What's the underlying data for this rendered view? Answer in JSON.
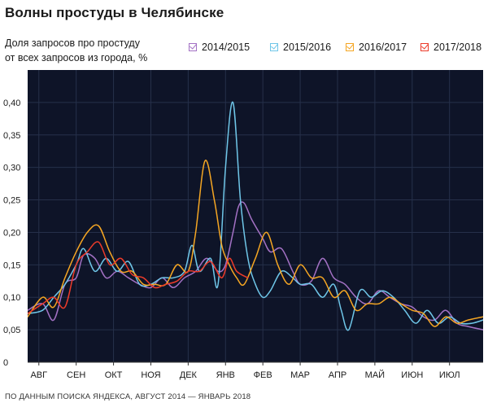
{
  "chart_data": {
    "type": "line",
    "title": "Волны простуды в Челябинске",
    "ylabel_lines": [
      "Доля запросов про простуду",
      "от всех запросов из города, %"
    ],
    "xlabel": "",
    "ylim": [
      0,
      0.45
    ],
    "yticks": [
      0,
      0.05,
      0.1,
      0.15,
      0.2,
      0.25,
      0.3,
      0.35,
      0.4
    ],
    "ytick_labels": [
      "0",
      "0,05",
      "0,10",
      "0,15",
      "0,20",
      "0,25",
      "0,30",
      "0,35",
      "0,40"
    ],
    "months": [
      "АВГ",
      "СЕН",
      "ОКТ",
      "НОЯ",
      "ДЕК",
      "ЯНВ",
      "ФЕВ",
      "МАР",
      "АПР",
      "МАЙ",
      "ИЮН",
      "ИЮЛ"
    ],
    "x_unit": "months since Aug 1",
    "xlim": [
      -0.3,
      11.9
    ],
    "source": "ПО ДАННЫМ ПОИСКА ЯНДЕКСА, АВГУСТ 2014 — ЯНВАРЬ 2018",
    "background": "#0e1428",
    "series": [
      {
        "name": "2014/2015",
        "color": "#a371c4",
        "x": [
          -0.3,
          0.1,
          0.4,
          0.7,
          1.0,
          1.2,
          1.5,
          1.8,
          2.1,
          2.4,
          2.7,
          3.0,
          3.3,
          3.6,
          3.9,
          4.2,
          4.5,
          4.8,
          5.0,
          5.2,
          5.35,
          5.5,
          5.7,
          6.0,
          6.2,
          6.5,
          6.8,
          7.0,
          7.3,
          7.6,
          7.9,
          8.2,
          8.5,
          8.8,
          9.1,
          9.4,
          9.7,
          10.0,
          10.3,
          10.6,
          10.9,
          11.2,
          11.5,
          11.9
        ],
        "values": [
          0.08,
          0.09,
          0.065,
          0.12,
          0.13,
          0.165,
          0.16,
          0.13,
          0.14,
          0.13,
          0.12,
          0.115,
          0.13,
          0.115,
          0.13,
          0.14,
          0.16,
          0.14,
          0.15,
          0.2,
          0.24,
          0.245,
          0.22,
          0.19,
          0.17,
          0.175,
          0.14,
          0.12,
          0.125,
          0.16,
          0.13,
          0.12,
          0.1,
          0.09,
          0.11,
          0.1,
          0.09,
          0.085,
          0.07,
          0.065,
          0.08,
          0.06,
          0.055,
          0.05
        ]
      },
      {
        "name": "2015/2016",
        "color": "#6fc6e8",
        "x": [
          -0.3,
          0.1,
          0.4,
          0.7,
          1.0,
          1.2,
          1.5,
          1.8,
          2.1,
          2.4,
          2.7,
          3.0,
          3.3,
          3.6,
          3.9,
          4.1,
          4.3,
          4.6,
          4.8,
          5.0,
          5.2,
          5.4,
          5.6,
          5.8,
          6.0,
          6.2,
          6.5,
          6.8,
          7.0,
          7.3,
          7.6,
          7.9,
          8.1,
          8.3,
          8.6,
          8.9,
          9.2,
          9.5,
          9.8,
          10.1,
          10.4,
          10.7,
          11.0,
          11.3,
          11.6,
          11.9
        ],
        "values": [
          0.075,
          0.08,
          0.1,
          0.12,
          0.15,
          0.175,
          0.14,
          0.16,
          0.14,
          0.155,
          0.12,
          0.12,
          0.13,
          0.13,
          0.14,
          0.18,
          0.14,
          0.16,
          0.12,
          0.3,
          0.4,
          0.25,
          0.16,
          0.12,
          0.1,
          0.11,
          0.14,
          0.13,
          0.12,
          0.12,
          0.1,
          0.12,
          0.08,
          0.05,
          0.11,
          0.1,
          0.11,
          0.1,
          0.08,
          0.06,
          0.08,
          0.06,
          0.07,
          0.06,
          0.06,
          0.065
        ]
      },
      {
        "name": "2016/2017",
        "color": "#f5a623",
        "x": [
          -0.3,
          0.1,
          0.4,
          0.7,
          1.0,
          1.3,
          1.6,
          1.9,
          2.2,
          2.5,
          2.8,
          3.1,
          3.4,
          3.7,
          4.0,
          4.2,
          4.45,
          4.7,
          4.9,
          5.1,
          5.3,
          5.5,
          5.8,
          6.1,
          6.4,
          6.7,
          7.0,
          7.3,
          7.6,
          7.9,
          8.2,
          8.5,
          8.8,
          9.1,
          9.4,
          9.7,
          10.0,
          10.3,
          10.6,
          10.9,
          11.2,
          11.5,
          11.9
        ],
        "values": [
          0.07,
          0.1,
          0.085,
          0.13,
          0.17,
          0.2,
          0.21,
          0.17,
          0.14,
          0.14,
          0.12,
          0.12,
          0.12,
          0.15,
          0.14,
          0.2,
          0.31,
          0.25,
          0.18,
          0.15,
          0.13,
          0.12,
          0.16,
          0.2,
          0.15,
          0.12,
          0.15,
          0.13,
          0.13,
          0.1,
          0.11,
          0.08,
          0.09,
          0.09,
          0.1,
          0.09,
          0.08,
          0.075,
          0.055,
          0.07,
          0.06,
          0.065,
          0.07
        ]
      },
      {
        "name": "2017/2018",
        "color": "#ec3b2a",
        "x": [
          -0.3,
          0.1,
          0.4,
          0.7,
          1.0,
          1.3,
          1.6,
          1.9,
          2.2,
          2.5,
          2.8,
          3.1,
          3.4,
          3.7,
          4.0,
          4.3,
          4.6,
          4.9,
          5.1,
          5.3,
          5.6
        ],
        "values": [
          0.075,
          0.09,
          0.1,
          0.085,
          0.15,
          0.17,
          0.185,
          0.15,
          0.16,
          0.135,
          0.13,
          0.115,
          0.12,
          0.125,
          0.14,
          0.14,
          0.155,
          0.13,
          0.16,
          0.14,
          0.13
        ]
      }
    ]
  }
}
